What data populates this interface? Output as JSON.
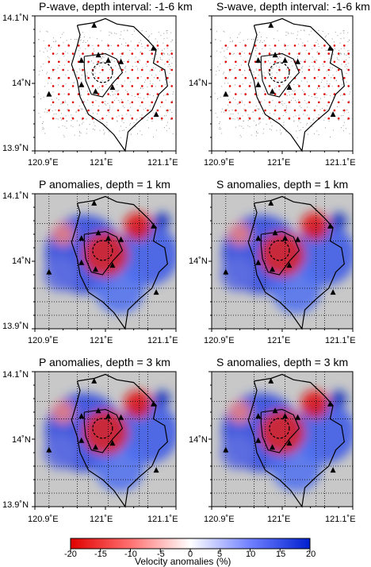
{
  "panels": [
    {
      "title": "P-wave, depth interval: -1-6 km",
      "kind": "rays"
    },
    {
      "title": "S-wave, depth interval: -1-6 km",
      "kind": "rays"
    },
    {
      "title": "P anomalies, depth = 1 km",
      "kind": "anom"
    },
    {
      "title": "S anomalies, depth = 1 km",
      "kind": "anom"
    },
    {
      "title": "P anomalies, depth = 3 km",
      "kind": "anom"
    },
    {
      "title": "S anomalies, depth = 3 km",
      "kind": "anom"
    }
  ],
  "axes": {
    "y_ticks": [
      "14.1˚N",
      "14˚N",
      "13.9˚N"
    ],
    "x_ticks": [
      "120.9˚E",
      "121˚E",
      "121.1˚E"
    ]
  },
  "colorbar": {
    "ticks": [
      "-20",
      "-15",
      "-10",
      "-5",
      "0",
      "5",
      "10",
      "15",
      "20"
    ],
    "label": "Velocity anomalies (%)",
    "colors": {
      "neg": "#e00000",
      "zero": "#ffffff",
      "pos": "#0020d0"
    }
  }
}
